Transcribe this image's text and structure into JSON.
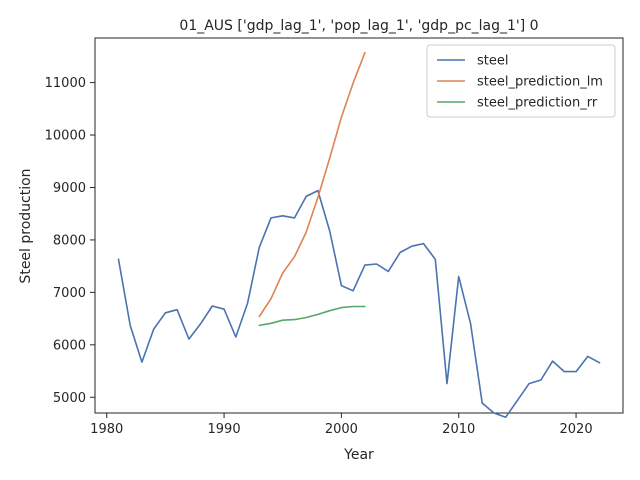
{
  "chart_data": {
    "type": "line",
    "title": "01_AUS ['gdp_lag_1', 'pop_lag_1', 'gdp_pc_lag_1'] 0",
    "xlabel": "Year",
    "ylabel": "Steel production",
    "xlim": [
      1979,
      2024
    ],
    "ylim": [
      4700,
      11850
    ],
    "xticks": [
      1980,
      1990,
      2000,
      2010,
      2020
    ],
    "yticks": [
      5000,
      6000,
      7000,
      8000,
      9000,
      10000,
      11000
    ],
    "grid": false,
    "legend_position": "top-right",
    "series": [
      {
        "name": "steel",
        "color": "#4c72b0",
        "x": [
          1981,
          1982,
          1983,
          1984,
          1985,
          1986,
          1987,
          1988,
          1989,
          1990,
          1991,
          1992,
          1993,
          1994,
          1995,
          1996,
          1997,
          1998,
          1999,
          2000,
          2001,
          2002,
          2003,
          2004,
          2005,
          2006,
          2007,
          2008,
          2009,
          2010,
          2011,
          2012,
          2013,
          2014,
          2015,
          2016,
          2017,
          2018,
          2019,
          2020,
          2021,
          2022
        ],
        "y": [
          7630,
          6370,
          5670,
          6300,
          6610,
          6670,
          6110,
          6400,
          6740,
          6680,
          6150,
          6790,
          7860,
          8420,
          8460,
          8420,
          8830,
          8940,
          8170,
          7130,
          7030,
          7520,
          7540,
          7400,
          7760,
          7880,
          7930,
          7630,
          5260,
          7300,
          6410,
          4890,
          4700,
          4620,
          4940,
          5260,
          5330,
          5690,
          5490,
          5490,
          5780,
          5660
        ]
      },
      {
        "name": "steel_prediction_lm",
        "color": "#dd8452",
        "x": [
          1993,
          1994,
          1995,
          1996,
          1997,
          1998,
          1999,
          2000,
          2001,
          2002
        ],
        "y": [
          6540,
          6880,
          7370,
          7680,
          8150,
          8810,
          9560,
          10340,
          10990,
          11570
        ]
      },
      {
        "name": "steel_prediction_rr",
        "color": "#55a868",
        "x": [
          1993,
          1994,
          1995,
          1996,
          1997,
          1998,
          1999,
          2000,
          2001,
          2002
        ],
        "y": [
          6370,
          6410,
          6470,
          6480,
          6520,
          6580,
          6650,
          6710,
          6730,
          6730
        ]
      }
    ]
  }
}
